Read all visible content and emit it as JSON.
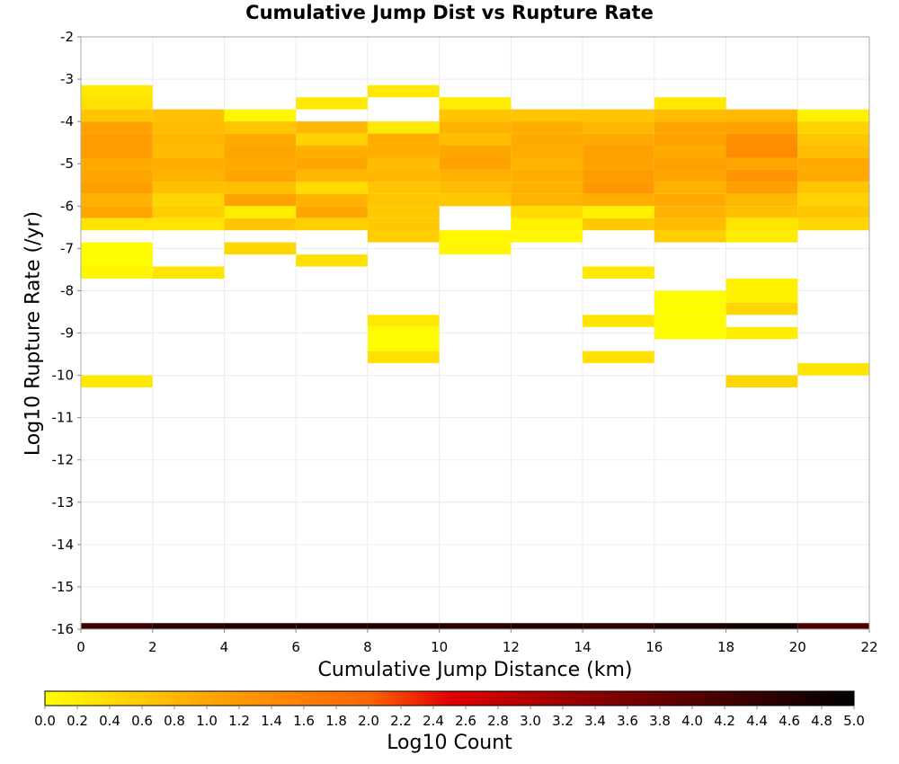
{
  "chart_data": {
    "type": "heatmap",
    "title": "Cumulative Jump Dist vs Rupture Rate",
    "xlabel": "Cumulative Jump Distance (km)",
    "ylabel": "Log10 Rupture Rate (/yr)",
    "xlim": [
      0,
      22
    ],
    "ylim": [
      -16,
      -2
    ],
    "x_ticks": [
      "0",
      "2",
      "4",
      "6",
      "8",
      "10",
      "12",
      "14",
      "16",
      "18",
      "20",
      "22"
    ],
    "y_ticks": [
      "-2",
      "-3",
      "-4",
      "-5",
      "-6",
      "-7",
      "-8",
      "-9",
      "-10",
      "-11",
      "-12",
      "-13",
      "-14",
      "-15",
      "-16"
    ],
    "x_bin_width": 2,
    "y_bin_height": 0.2857,
    "grid": true,
    "colorbar": {
      "label": "Log10 Count",
      "min": 0.0,
      "max": 5.0,
      "ticks": [
        "0.0",
        "0.2",
        "0.4",
        "0.6",
        "0.8",
        "1.0",
        "1.2",
        "1.4",
        "1.6",
        "1.8",
        "2.0",
        "2.2",
        "2.4",
        "2.6",
        "2.8",
        "3.0",
        "3.2",
        "3.4",
        "3.6",
        "3.8",
        "4.0",
        "4.2",
        "4.4",
        "4.6",
        "4.8",
        "5.0"
      ],
      "colors": [
        "#ffff00",
        "#ffa500",
        "#ff6600",
        "#e00000",
        "#800000",
        "#000000"
      ]
    },
    "columns": [
      {
        "x": 0,
        "cells": [
          {
            "y": -3.286,
            "v": 0.25
          },
          {
            "y": -3.571,
            "v": 0.35
          },
          {
            "y": -3.857,
            "v": 0.65
          },
          {
            "y": -4.143,
            "v": 1.05
          },
          {
            "y": -4.429,
            "v": 1.15
          },
          {
            "y": -4.714,
            "v": 1.15
          },
          {
            "y": -5.0,
            "v": 0.95
          },
          {
            "y": -5.286,
            "v": 1.0
          },
          {
            "y": -5.571,
            "v": 1.1
          },
          {
            "y": -5.857,
            "v": 0.85
          },
          {
            "y": -6.143,
            "v": 1.0
          },
          {
            "y": -6.429,
            "v": 0.3
          },
          {
            "y": -7.0,
            "v": 0.05
          },
          {
            "y": -7.286,
            "v": 0.05
          },
          {
            "y": -7.571,
            "v": 0.1
          },
          {
            "y": -10.143,
            "v": 0.25
          },
          {
            "y": -16.0,
            "v": 4.3
          }
        ]
      },
      {
        "x": 2,
        "cells": [
          {
            "y": -3.857,
            "v": 0.7
          },
          {
            "y": -4.143,
            "v": 0.75
          },
          {
            "y": -4.429,
            "v": 0.8
          },
          {
            "y": -4.714,
            "v": 0.75
          },
          {
            "y": -5.0,
            "v": 0.9
          },
          {
            "y": -5.286,
            "v": 0.85
          },
          {
            "y": -5.571,
            "v": 0.7
          },
          {
            "y": -5.857,
            "v": 0.45
          },
          {
            "y": -6.143,
            "v": 0.55
          },
          {
            "y": -6.429,
            "v": 0.3
          },
          {
            "y": -7.571,
            "v": 0.3
          },
          {
            "y": -16.0,
            "v": 4.5
          }
        ]
      },
      {
        "x": 4,
        "cells": [
          {
            "y": -3.857,
            "v": 0.1
          },
          {
            "y": -4.143,
            "v": 0.65
          },
          {
            "y": -4.429,
            "v": 0.95
          },
          {
            "y": -4.714,
            "v": 1.0
          },
          {
            "y": -5.0,
            "v": 0.95
          },
          {
            "y": -5.286,
            "v": 1.0
          },
          {
            "y": -5.571,
            "v": 0.7
          },
          {
            "y": -5.857,
            "v": 1.05
          },
          {
            "y": -6.143,
            "v": 0.2
          },
          {
            "y": -6.429,
            "v": 0.65
          },
          {
            "y": -7.0,
            "v": 0.45
          },
          {
            "y": -16.0,
            "v": 4.6
          }
        ]
      },
      {
        "x": 6,
        "cells": [
          {
            "y": -3.571,
            "v": 0.25
          },
          {
            "y": -4.143,
            "v": 0.8
          },
          {
            "y": -4.429,
            "v": 0.5
          },
          {
            "y": -4.714,
            "v": 0.9
          },
          {
            "y": -5.0,
            "v": 1.0
          },
          {
            "y": -5.286,
            "v": 0.8
          },
          {
            "y": -5.571,
            "v": 0.4
          },
          {
            "y": -5.857,
            "v": 0.85
          },
          {
            "y": -6.143,
            "v": 1.0
          },
          {
            "y": -6.429,
            "v": 0.55
          },
          {
            "y": -7.286,
            "v": 0.35
          },
          {
            "y": -16.0,
            "v": 4.6
          }
        ]
      },
      {
        "x": 8,
        "cells": [
          {
            "y": -3.286,
            "v": 0.25
          },
          {
            "y": -4.143,
            "v": 0.25
          },
          {
            "y": -4.429,
            "v": 0.9
          },
          {
            "y": -4.714,
            "v": 0.9
          },
          {
            "y": -5.0,
            "v": 0.75
          },
          {
            "y": -5.286,
            "v": 0.8
          },
          {
            "y": -5.571,
            "v": 0.65
          },
          {
            "y": -5.857,
            "v": 0.65
          },
          {
            "y": -6.143,
            "v": 0.6
          },
          {
            "y": -6.429,
            "v": 0.6
          },
          {
            "y": -6.714,
            "v": 0.55
          },
          {
            "y": -8.714,
            "v": 0.25
          },
          {
            "y": -9.0,
            "v": 0.05
          },
          {
            "y": -9.286,
            "v": 0.05
          },
          {
            "y": -9.571,
            "v": 0.35
          },
          {
            "y": -16.0,
            "v": 4.6
          }
        ]
      },
      {
        "x": 10,
        "cells": [
          {
            "y": -3.571,
            "v": 0.2
          },
          {
            "y": -3.857,
            "v": 0.65
          },
          {
            "y": -4.143,
            "v": 0.85
          },
          {
            "y": -4.429,
            "v": 0.75
          },
          {
            "y": -4.714,
            "v": 1.0
          },
          {
            "y": -5.0,
            "v": 1.05
          },
          {
            "y": -5.286,
            "v": 0.85
          },
          {
            "y": -5.571,
            "v": 0.75
          },
          {
            "y": -5.857,
            "v": 0.6
          },
          {
            "y": -6.714,
            "v": 0.1
          },
          {
            "y": -7.0,
            "v": 0.1
          },
          {
            "y": -16.0,
            "v": 4.5
          }
        ]
      },
      {
        "x": 12,
        "cells": [
          {
            "y": -3.857,
            "v": 0.65
          },
          {
            "y": -4.143,
            "v": 0.9
          },
          {
            "y": -4.429,
            "v": 0.95
          },
          {
            "y": -4.714,
            "v": 0.9
          },
          {
            "y": -5.0,
            "v": 0.85
          },
          {
            "y": -5.286,
            "v": 0.9
          },
          {
            "y": -5.571,
            "v": 0.85
          },
          {
            "y": -5.857,
            "v": 0.85
          },
          {
            "y": -6.143,
            "v": 0.4
          },
          {
            "y": -6.429,
            "v": 0.15
          },
          {
            "y": -6.714,
            "v": 0.1
          },
          {
            "y": -16.0,
            "v": 4.6
          }
        ]
      },
      {
        "x": 14,
        "cells": [
          {
            "y": -3.857,
            "v": 0.65
          },
          {
            "y": -4.143,
            "v": 0.8
          },
          {
            "y": -4.429,
            "v": 0.95
          },
          {
            "y": -4.714,
            "v": 1.1
          },
          {
            "y": -5.0,
            "v": 1.05
          },
          {
            "y": -5.286,
            "v": 1.15
          },
          {
            "y": -5.571,
            "v": 1.2
          },
          {
            "y": -5.857,
            "v": 0.9
          },
          {
            "y": -6.143,
            "v": 0.15
          },
          {
            "y": -6.429,
            "v": 0.6
          },
          {
            "y": -7.571,
            "v": 0.25
          },
          {
            "y": -8.714,
            "v": 0.3
          },
          {
            "y": -9.571,
            "v": 0.35
          },
          {
            "y": -16.0,
            "v": 4.5
          }
        ]
      },
      {
        "x": 16,
        "cells": [
          {
            "y": -3.571,
            "v": 0.25
          },
          {
            "y": -3.857,
            "v": 0.75
          },
          {
            "y": -4.143,
            "v": 1.0
          },
          {
            "y": -4.429,
            "v": 1.05
          },
          {
            "y": -4.714,
            "v": 0.95
          },
          {
            "y": -5.0,
            "v": 1.1
          },
          {
            "y": -5.286,
            "v": 1.0
          },
          {
            "y": -5.571,
            "v": 0.85
          },
          {
            "y": -5.857,
            "v": 0.95
          },
          {
            "y": -6.143,
            "v": 0.85
          },
          {
            "y": -6.429,
            "v": 0.75
          },
          {
            "y": -6.714,
            "v": 0.55
          },
          {
            "y": -8.143,
            "v": 0.05
          },
          {
            "y": -8.429,
            "v": 0.05
          },
          {
            "y": -8.714,
            "v": 0.05
          },
          {
            "y": -9.0,
            "v": 0.05
          },
          {
            "y": -16.0,
            "v": 4.7
          }
        ]
      },
      {
        "x": 18,
        "cells": [
          {
            "y": -3.857,
            "v": 0.8
          },
          {
            "y": -4.143,
            "v": 1.05
          },
          {
            "y": -4.429,
            "v": 1.35
          },
          {
            "y": -4.714,
            "v": 1.4
          },
          {
            "y": -5.0,
            "v": 1.0
          },
          {
            "y": -5.286,
            "v": 1.25
          },
          {
            "y": -5.571,
            "v": 1.1
          },
          {
            "y": -5.857,
            "v": 0.8
          },
          {
            "y": -6.143,
            "v": 0.7
          },
          {
            "y": -6.429,
            "v": 0.3
          },
          {
            "y": -6.714,
            "v": 0.2
          },
          {
            "y": -7.857,
            "v": 0.15
          },
          {
            "y": -8.143,
            "v": 0.15
          },
          {
            "y": -8.429,
            "v": 0.45
          },
          {
            "y": -9.0,
            "v": 0.2
          },
          {
            "y": -10.143,
            "v": 0.45
          },
          {
            "y": -16.0,
            "v": 4.8
          }
        ]
      },
      {
        "x": 20,
        "cells": [
          {
            "y": -3.857,
            "v": 0.15
          },
          {
            "y": -4.143,
            "v": 0.5
          },
          {
            "y": -4.429,
            "v": 0.65
          },
          {
            "y": -4.714,
            "v": 0.75
          },
          {
            "y": -5.0,
            "v": 0.95
          },
          {
            "y": -5.286,
            "v": 0.95
          },
          {
            "y": -5.571,
            "v": 0.65
          },
          {
            "y": -5.857,
            "v": 0.5
          },
          {
            "y": -6.143,
            "v": 0.65
          },
          {
            "y": -6.429,
            "v": 0.45
          },
          {
            "y": -9.857,
            "v": 0.3
          },
          {
            "y": -16.0,
            "v": 4.1
          }
        ]
      }
    ]
  }
}
